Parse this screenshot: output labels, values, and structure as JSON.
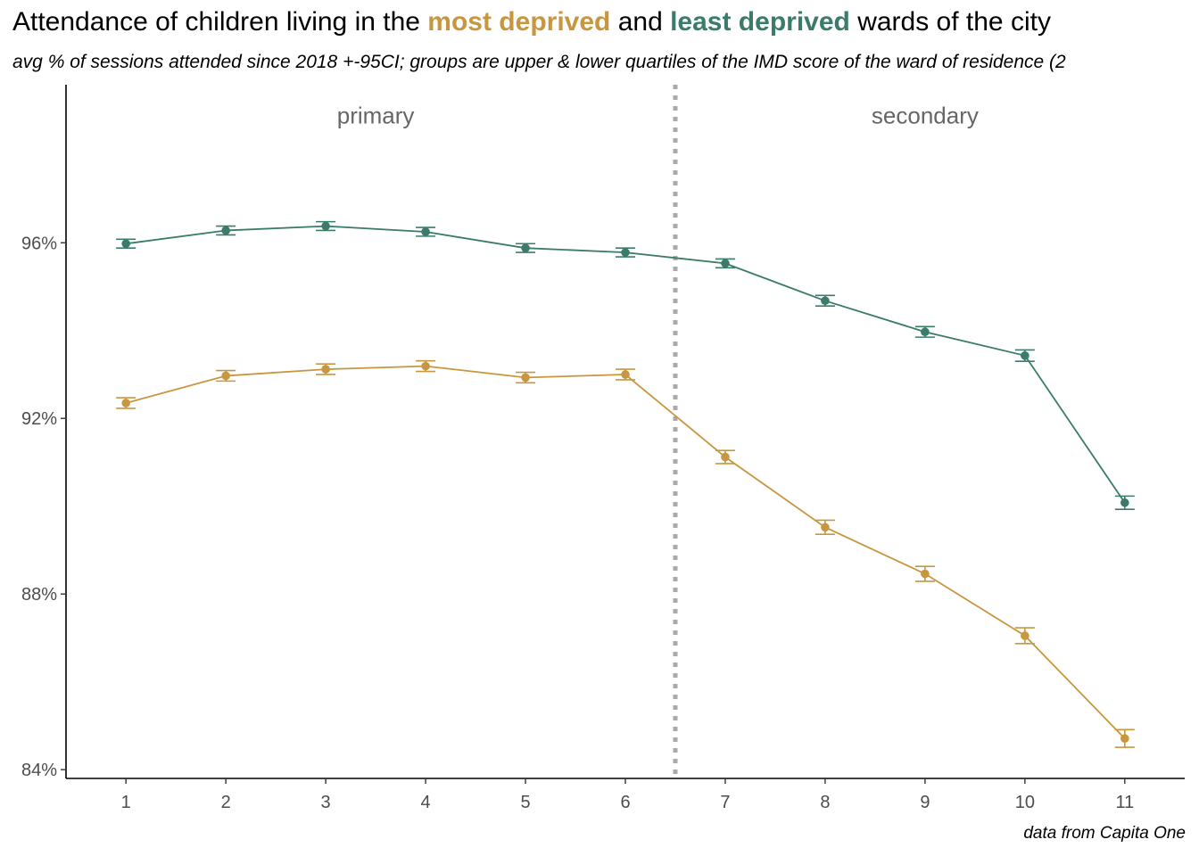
{
  "title": {
    "part1": "Attendance of children living in the ",
    "highlight1": "most deprived",
    "part2": " and ",
    "highlight2": "least deprived",
    "part3": " wards of the city"
  },
  "subtitle": "avg % of sessions attended since 2018 +-95CI; groups are upper & lower quartiles of the IMD score of the ward of residence (2",
  "caption": "data from Capita One",
  "colors": {
    "most_deprived": "#C8963E",
    "least_deprived": "#3A7B6B",
    "divider": "#AAAAAA",
    "axis": "#000000"
  },
  "chart_data": {
    "type": "line",
    "title": "Attendance of children living in the most deprived and least deprived wards of the city",
    "xlabel": "",
    "ylabel": "",
    "x": [
      1,
      2,
      3,
      4,
      5,
      6,
      7,
      8,
      9,
      10,
      11
    ],
    "x_tick_labels": [
      "1",
      "2",
      "3",
      "4",
      "5",
      "6",
      "7",
      "8",
      "9",
      "10",
      "11"
    ],
    "y_ticks": [
      84,
      88,
      92,
      96
    ],
    "y_tick_labels": [
      "84%",
      "88%",
      "92%",
      "96%"
    ],
    "xlim": [
      0.4,
      11.6
    ],
    "ylim": [
      83.8,
      99.6
    ],
    "grid": false,
    "legend": "none",
    "divider_x": 6.5,
    "phase_labels": [
      {
        "label": "primary",
        "x": 3.5,
        "y": 98.9
      },
      {
        "label": "secondary",
        "x": 9.0,
        "y": 98.9
      }
    ],
    "series": [
      {
        "name": "least deprived",
        "color_key": "least_deprived",
        "values": [
          95.98,
          96.28,
          96.38,
          96.25,
          95.88,
          95.78,
          95.53,
          94.68,
          93.97,
          93.43,
          90.08
        ],
        "ci": [
          0.1,
          0.1,
          0.1,
          0.1,
          0.1,
          0.1,
          0.1,
          0.12,
          0.12,
          0.13,
          0.15
        ]
      },
      {
        "name": "most deprived",
        "color_key": "most_deprived",
        "values": [
          92.35,
          92.97,
          93.12,
          93.19,
          92.93,
          93.0,
          91.12,
          89.52,
          88.46,
          87.05,
          84.71
        ],
        "ci": [
          0.12,
          0.12,
          0.12,
          0.12,
          0.12,
          0.12,
          0.15,
          0.16,
          0.17,
          0.18,
          0.2
        ]
      }
    ]
  }
}
